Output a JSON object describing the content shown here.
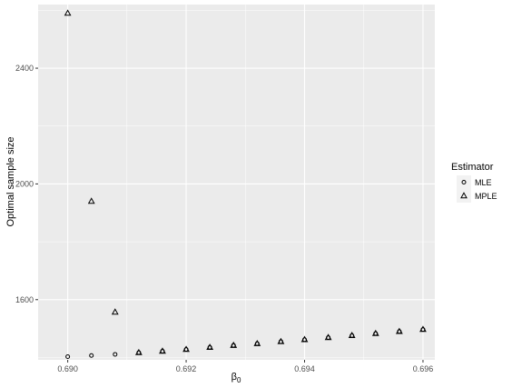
{
  "chart_data": {
    "type": "scatter",
    "title": "",
    "xlabel": "β",
    "xlabel_subscript": "0",
    "ylabel": "Optimal sample size",
    "xlim": [
      0.6895,
      0.6962
    ],
    "ylim": [
      1392,
      2620
    ],
    "x_ticks": [
      0.69,
      0.692,
      0.694,
      0.696
    ],
    "x_tick_labels": [
      "0.690",
      "0.692",
      "0.694",
      "0.696"
    ],
    "y_ticks": [
      1600,
      2000,
      2400
    ],
    "y_tick_labels": [
      "1600",
      "2000",
      "2400"
    ],
    "grid": true,
    "legend": {
      "title": "Estimator",
      "position": "right"
    },
    "series": [
      {
        "name": "MLE",
        "marker": "circle",
        "x": [
          0.69,
          0.6904,
          0.6908,
          0.6912,
          0.6916,
          0.692,
          0.6924,
          0.6928,
          0.6932,
          0.6936,
          0.694,
          0.6944,
          0.6948,
          0.6952,
          0.6956,
          0.696
        ],
        "y": [
          1403,
          1407,
          1411,
          1417,
          1422,
          1428,
          1435,
          1442,
          1448,
          1455,
          1462,
          1469,
          1476,
          1483,
          1490,
          1497
        ]
      },
      {
        "name": "MPLE",
        "marker": "triangle",
        "x": [
          0.69,
          0.6904,
          0.6908,
          0.6912,
          0.6916,
          0.692,
          0.6924,
          0.6928,
          0.6932,
          0.6936,
          0.694,
          0.6944,
          0.6948,
          0.6952,
          0.6956,
          0.696
        ],
        "y": [
          2590,
          1940,
          1557,
          1417,
          1422,
          1428,
          1435,
          1442,
          1448,
          1455,
          1462,
          1469,
          1476,
          1483,
          1490,
          1497
        ]
      }
    ]
  },
  "colors": {
    "panel_background": "#ebebeb",
    "grid_major": "#ffffff",
    "marker_stroke": "#000000"
  }
}
